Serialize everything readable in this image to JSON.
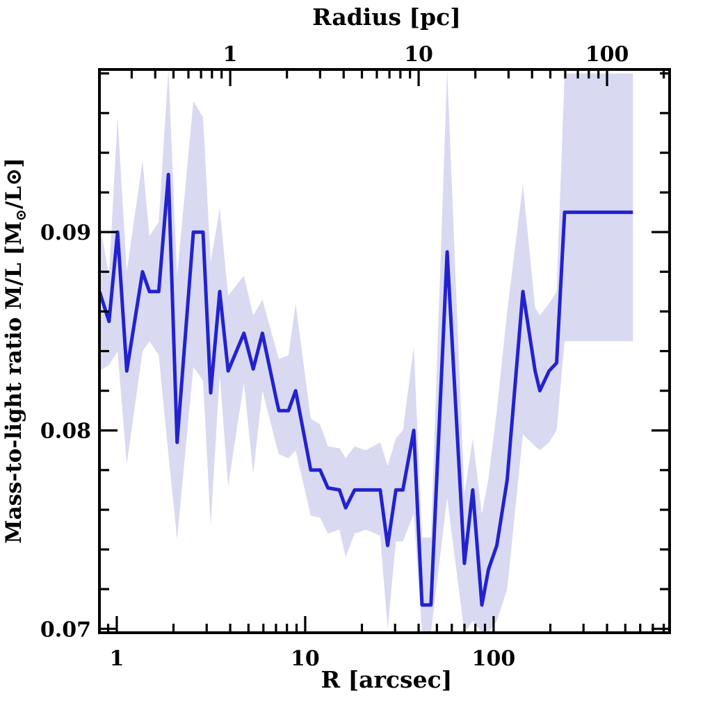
{
  "chart_data": {
    "type": "line",
    "x_axis_bottom": {
      "label": "R [arcsec]",
      "scale": "log",
      "range": [
        0.809,
        859
      ],
      "major_ticks": [
        1,
        10,
        100
      ],
      "major_tick_labels": [
        "1",
        "10",
        "100"
      ],
      "minor_ticks": [
        0.9,
        2,
        3,
        4,
        5,
        6,
        7,
        8,
        9,
        20,
        30,
        40,
        50,
        60,
        70,
        80,
        90,
        200,
        300,
        400,
        500,
        600,
        700,
        800
      ]
    },
    "x_axis_top": {
      "label": "Radius [pc]",
      "scale": "log",
      "arcsec_per_pc": 4.0,
      "major_ticks_pc": [
        1,
        10,
        100
      ],
      "major_tick_labels": [
        "1",
        "10",
        "100"
      ],
      "minor_ticks_pc": [
        0.3,
        0.4,
        0.5,
        0.6,
        0.7,
        0.8,
        0.9,
        2,
        3,
        4,
        5,
        6,
        7,
        8,
        9,
        20,
        30,
        40,
        50,
        60,
        70,
        80,
        90,
        200
      ]
    },
    "y_axis": {
      "label": "Mass-to-light ratio M/L [M⊙/L⊙]",
      "label_parts": [
        {
          "t": "Mass-to-light ratio M/L [M",
          "sub": false
        },
        {
          "t": "⊙",
          "sub": true
        },
        {
          "t": "/L",
          "sub": false
        },
        {
          "t": "⊙",
          "sub": false
        },
        {
          "t": "]",
          "sub": false
        }
      ],
      "range": [
        0.0698,
        0.0982
      ],
      "major_ticks": [
        0.07,
        0.08,
        0.09
      ],
      "major_tick_labels": [
        "0.07",
        "0.08",
        "0.09"
      ],
      "minor_tick_start": 0.072,
      "minor_tick_step": 0.002
    },
    "colors": {
      "line": "#2222cf",
      "band": "#d9d9f2",
      "frame": "#000000",
      "background": "#ffffff"
    },
    "series": [
      {
        "name": "M/L profile",
        "columns": [
          "R_arcsec",
          "ML",
          "ML_lo",
          "ML_hi"
        ],
        "points": [
          [
            0.81,
            0.087,
            0.083,
            0.0905
          ],
          [
            0.91,
            0.0855,
            0.0833,
            0.0878
          ],
          [
            1.01,
            0.09,
            0.084,
            0.0958
          ],
          [
            1.13,
            0.083,
            0.0783,
            0.088
          ],
          [
            1.37,
            0.088,
            0.084,
            0.0936
          ],
          [
            1.49,
            0.087,
            0.0845,
            0.0898
          ],
          [
            1.67,
            0.087,
            0.0838,
            0.0905
          ],
          [
            1.88,
            0.0929,
            0.0788,
            0.0982
          ],
          [
            2.09,
            0.0794,
            0.0745,
            0.0878
          ],
          [
            2.55,
            0.09,
            0.0832,
            0.0966
          ],
          [
            2.87,
            0.09,
            0.0825,
            0.0958
          ],
          [
            3.15,
            0.0819,
            0.0752,
            0.0885
          ],
          [
            3.52,
            0.087,
            0.0828,
            0.0912
          ],
          [
            3.9,
            0.083,
            0.0772,
            0.0868
          ],
          [
            4.73,
            0.0849,
            0.0824,
            0.0878
          ],
          [
            5.3,
            0.0831,
            0.0778,
            0.0858
          ],
          [
            5.93,
            0.0849,
            0.082,
            0.0866
          ],
          [
            7.05,
            0.0815,
            0.0792,
            0.084
          ],
          [
            7.25,
            0.081,
            0.0788,
            0.0836
          ],
          [
            8.15,
            0.081,
            0.0786,
            0.0838
          ],
          [
            8.9,
            0.082,
            0.079,
            0.0864
          ],
          [
            10.7,
            0.078,
            0.0757,
            0.0806
          ],
          [
            12.0,
            0.078,
            0.0756,
            0.0803
          ],
          [
            13.2,
            0.0771,
            0.0748,
            0.0792
          ],
          [
            15.2,
            0.077,
            0.075,
            0.0791
          ],
          [
            16.4,
            0.0761,
            0.0736,
            0.0786
          ],
          [
            18.3,
            0.077,
            0.0748,
            0.0792
          ],
          [
            21.0,
            0.077,
            0.075,
            0.079
          ],
          [
            25.0,
            0.077,
            0.0747,
            0.0794
          ],
          [
            27.4,
            0.0742,
            0.07,
            0.0782
          ],
          [
            30.3,
            0.077,
            0.0744,
            0.0796
          ],
          [
            33.0,
            0.077,
            0.0744,
            0.08
          ],
          [
            37.7,
            0.08,
            0.0758,
            0.0842
          ],
          [
            41.7,
            0.0712,
            0.0698,
            0.0746
          ],
          [
            46.5,
            0.0712,
            0.0698,
            0.0746
          ],
          [
            56.7,
            0.089,
            0.0766,
            0.0982
          ],
          [
            70.0,
            0.0733,
            0.0698,
            0.0768
          ],
          [
            77.5,
            0.077,
            0.0704,
            0.0796
          ],
          [
            86.6,
            0.0712,
            0.0698,
            0.0758
          ],
          [
            94.0,
            0.073,
            0.0698,
            0.0776
          ],
          [
            104,
            0.0742,
            0.0704,
            0.081
          ],
          [
            118,
            0.0775,
            0.072,
            0.086
          ],
          [
            143,
            0.087,
            0.0798,
            0.0924
          ],
          [
            166,
            0.083,
            0.0792,
            0.0862
          ],
          [
            176,
            0.082,
            0.079,
            0.0858
          ],
          [
            197,
            0.083,
            0.0794,
            0.0864
          ],
          [
            216,
            0.0834,
            0.08,
            0.087
          ],
          [
            238,
            0.091,
            0.0845,
            0.098
          ],
          [
            549,
            0.091,
            0.0845,
            0.098
          ]
        ]
      }
    ],
    "legend": null,
    "grid": false
  }
}
